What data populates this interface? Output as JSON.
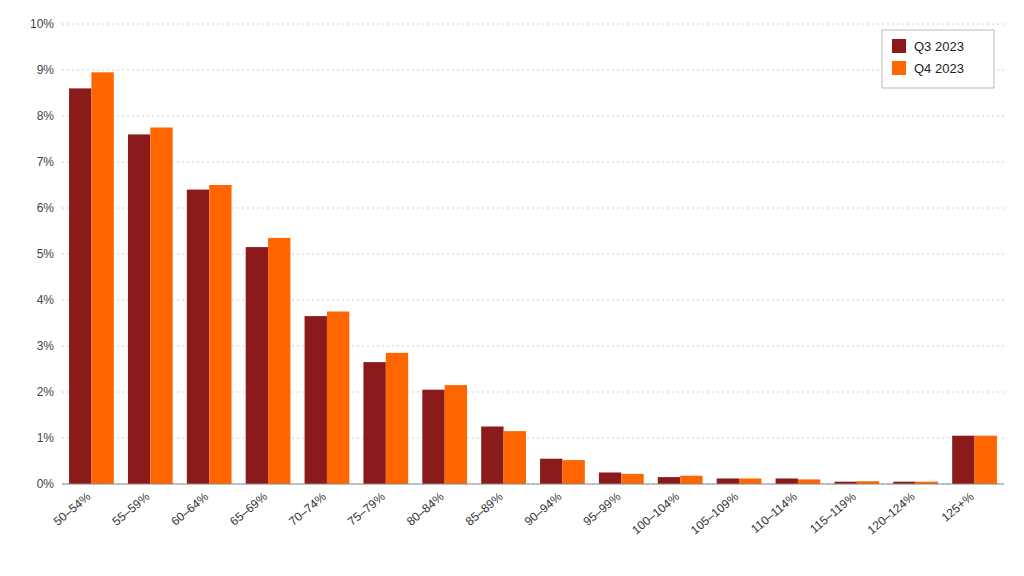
{
  "chart_data": {
    "type": "bar",
    "categories": [
      "50–54%",
      "55–59%",
      "60–64%",
      "65–69%",
      "70–74%",
      "75–79%",
      "80–84%",
      "85–89%",
      "90–94%",
      "95–99%",
      "100–104%",
      "105–109%",
      "110–114%",
      "115–119%",
      "120–124%",
      "125+%"
    ],
    "series": [
      {
        "name": "Q3 2023",
        "color": "#8B1A1A",
        "values": [
          0.086,
          0.076,
          0.064,
          0.0515,
          0.0365,
          0.0265,
          0.0205,
          0.0125,
          0.0055,
          0.0025,
          0.0015,
          0.0012,
          0.0012,
          0.0005,
          0.0005,
          0.0105
        ]
      },
      {
        "name": "Q4 2023",
        "color": "#FF6600",
        "values": [
          0.0895,
          0.0775,
          0.065,
          0.0535,
          0.0375,
          0.0285,
          0.0215,
          0.0115,
          0.0052,
          0.0022,
          0.0018,
          0.0012,
          0.001,
          0.0006,
          0.0005,
          0.0105
        ]
      }
    ],
    "ylim": [
      0,
      0.1
    ],
    "yticks": [
      {
        "value": 0.0,
        "label": "0%"
      },
      {
        "value": 0.01,
        "label": "1%"
      },
      {
        "value": 0.02,
        "label": "2%"
      },
      {
        "value": 0.03,
        "label": "3%"
      },
      {
        "value": 0.04,
        "label": "4%"
      },
      {
        "value": 0.05,
        "label": "5%"
      },
      {
        "value": 0.06,
        "label": "6%"
      },
      {
        "value": 0.07,
        "label": "7%"
      },
      {
        "value": 0.08,
        "label": "8%"
      },
      {
        "value": 0.09,
        "label": "9%"
      },
      {
        "value": 0.1,
        "label": "10%"
      }
    ],
    "grid": true,
    "legend": "upper right"
  }
}
